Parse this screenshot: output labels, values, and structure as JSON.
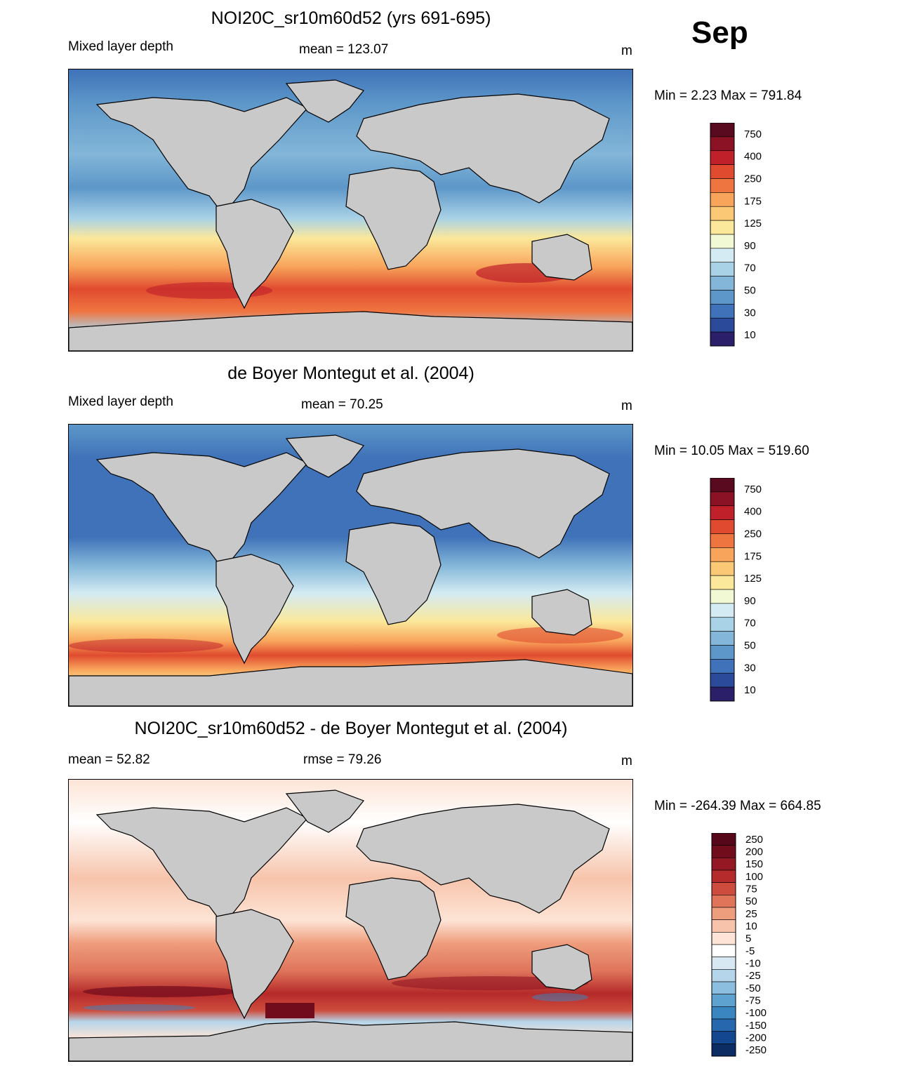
{
  "header": {
    "month": "Sep"
  },
  "panels": [
    {
      "title": "NOI20C_sr10m60d52 (yrs 691-695)",
      "left_label": "Mixed layer depth",
      "center_label": "mean = 123.07",
      "units": "m",
      "minmax": "Min =   2.23 Max = 791.84",
      "colorbar": [
        "750",
        "400",
        "250",
        "175",
        "125",
        "90",
        "70",
        "50",
        "30",
        "10"
      ]
    },
    {
      "title": "de Boyer Montegut et al. (2004)",
      "left_label": "Mixed layer depth",
      "center_label": "mean =  70.25",
      "units": "m",
      "minmax": "Min =  10.05 Max = 519.60",
      "colorbar": [
        "750",
        "400",
        "250",
        "175",
        "125",
        "90",
        "70",
        "50",
        "30",
        "10"
      ]
    },
    {
      "title": "NOI20C_sr10m60d52 - de Boyer Montegut et al. (2004)",
      "left_label": "mean =  52.82",
      "center_label": "rmse =  79.26",
      "units": "m",
      "minmax": "Min = -264.39 Max = 664.85",
      "colorbar": [
        "250",
        "200",
        "150",
        "100",
        "75",
        "50",
        "25",
        "10",
        "5",
        "-5",
        "-10",
        "-25",
        "-50",
        "-75",
        "-100",
        "-150",
        "-200",
        "-250"
      ]
    }
  ],
  "colors": {
    "land": "#c9c9c9",
    "seq": [
      "#2b1f6a",
      "#2b4a9a",
      "#3f72b8",
      "#5d97c9",
      "#83b6d8",
      "#aad2e6",
      "#d4ebf3",
      "#f0f8d4",
      "#fbe89a",
      "#fbc875",
      "#f8a45b",
      "#ef7540",
      "#e04b2f",
      "#bf2029",
      "#8a1224",
      "#5a0a1f"
    ],
    "div": [
      "#0b2d63",
      "#13478f",
      "#2667ad",
      "#3a86c0",
      "#5ea3cf",
      "#8cbee0",
      "#b5d5ea",
      "#d8e8f2",
      "#ffffff",
      "#fde4d6",
      "#f7c4ab",
      "#ef9e7d",
      "#df745b",
      "#cd4c3d",
      "#b52a2a",
      "#931824",
      "#700c1c",
      "#57071a"
    ]
  },
  "chart_data": [
    {
      "type": "heatmap",
      "title": "NOI20C_sr10m60d52 (yrs 691-695)",
      "variable": "Mixed layer depth",
      "units": "m",
      "mean": 123.07,
      "min": 2.23,
      "max": 791.84,
      "levels": [
        10,
        30,
        50,
        70,
        90,
        125,
        175,
        250,
        400,
        750
      ]
    },
    {
      "type": "heatmap",
      "title": "de Boyer Montegut et al. (2004)",
      "variable": "Mixed layer depth",
      "units": "m",
      "mean": 70.25,
      "min": 10.05,
      "max": 519.6,
      "levels": [
        10,
        30,
        50,
        70,
        90,
        125,
        175,
        250,
        400,
        750
      ]
    },
    {
      "type": "heatmap",
      "title": "NOI20C_sr10m60d52 - de Boyer Montegut et al. (2004)",
      "units": "m",
      "mean": 52.82,
      "rmse": 79.26,
      "min": -264.39,
      "max": 664.85,
      "levels": [
        -250,
        -200,
        -150,
        -100,
        -75,
        -50,
        -25,
        -10,
        -5,
        5,
        10,
        25,
        50,
        75,
        100,
        150,
        200,
        250
      ]
    }
  ]
}
